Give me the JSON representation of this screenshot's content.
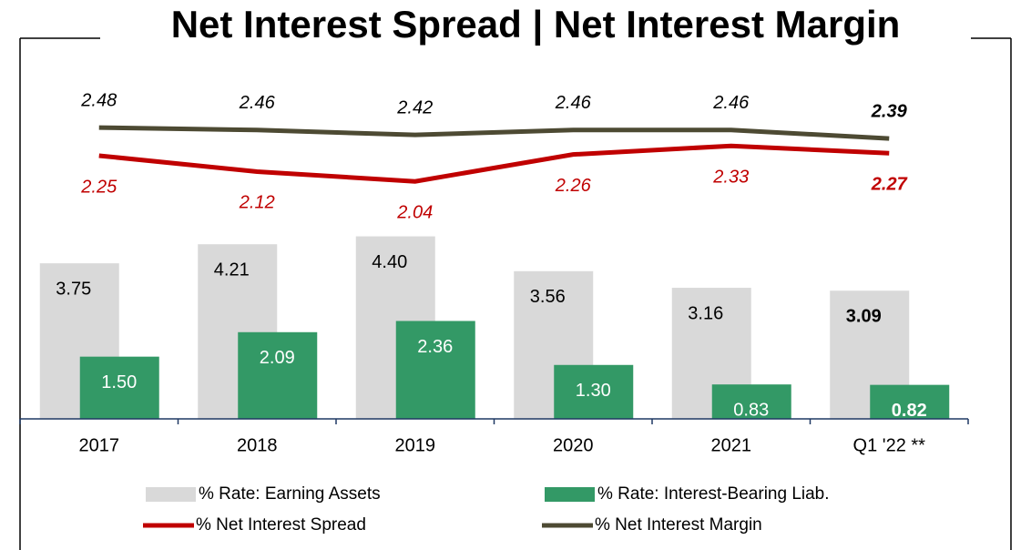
{
  "chart_data": {
    "type": "bar",
    "title": "Net Interest Spread | Net Interest Margin",
    "categories": [
      "2017",
      "2018",
      "2019",
      "2020",
      "2021",
      "Q1 '22 **"
    ],
    "series": [
      {
        "name": "% Rate: Earning Assets",
        "type": "bar",
        "color": "#d9d9d9",
        "values": [
          3.75,
          4.21,
          4.4,
          3.56,
          3.16,
          3.09
        ],
        "value_labels": [
          "3.75",
          "4.21",
          "4.40",
          "3.56",
          "3.16",
          "3.09"
        ]
      },
      {
        "name": "% Rate: Interest-Bearing Liab.",
        "type": "bar",
        "color": "#339966",
        "values": [
          1.5,
          2.09,
          2.36,
          1.3,
          0.83,
          0.82
        ],
        "value_labels": [
          "1.50",
          "2.09",
          "2.36",
          "1.30",
          "0.83",
          "0.82"
        ]
      },
      {
        "name": "% Net Interest Spread",
        "type": "line",
        "axis": "y2",
        "color": "#c00000",
        "values": [
          2.25,
          2.12,
          2.04,
          2.26,
          2.33,
          2.27
        ]
      },
      {
        "name": "% Net Interest Margin",
        "type": "line",
        "axis": "y2",
        "color": "#4d4a33",
        "values": [
          2.48,
          2.46,
          2.42,
          2.46,
          2.46,
          2.39
        ]
      }
    ],
    "ylim": [
      0,
      9
    ],
    "y2lim": [
      0.1,
      3.15
    ],
    "bold_last": true
  }
}
